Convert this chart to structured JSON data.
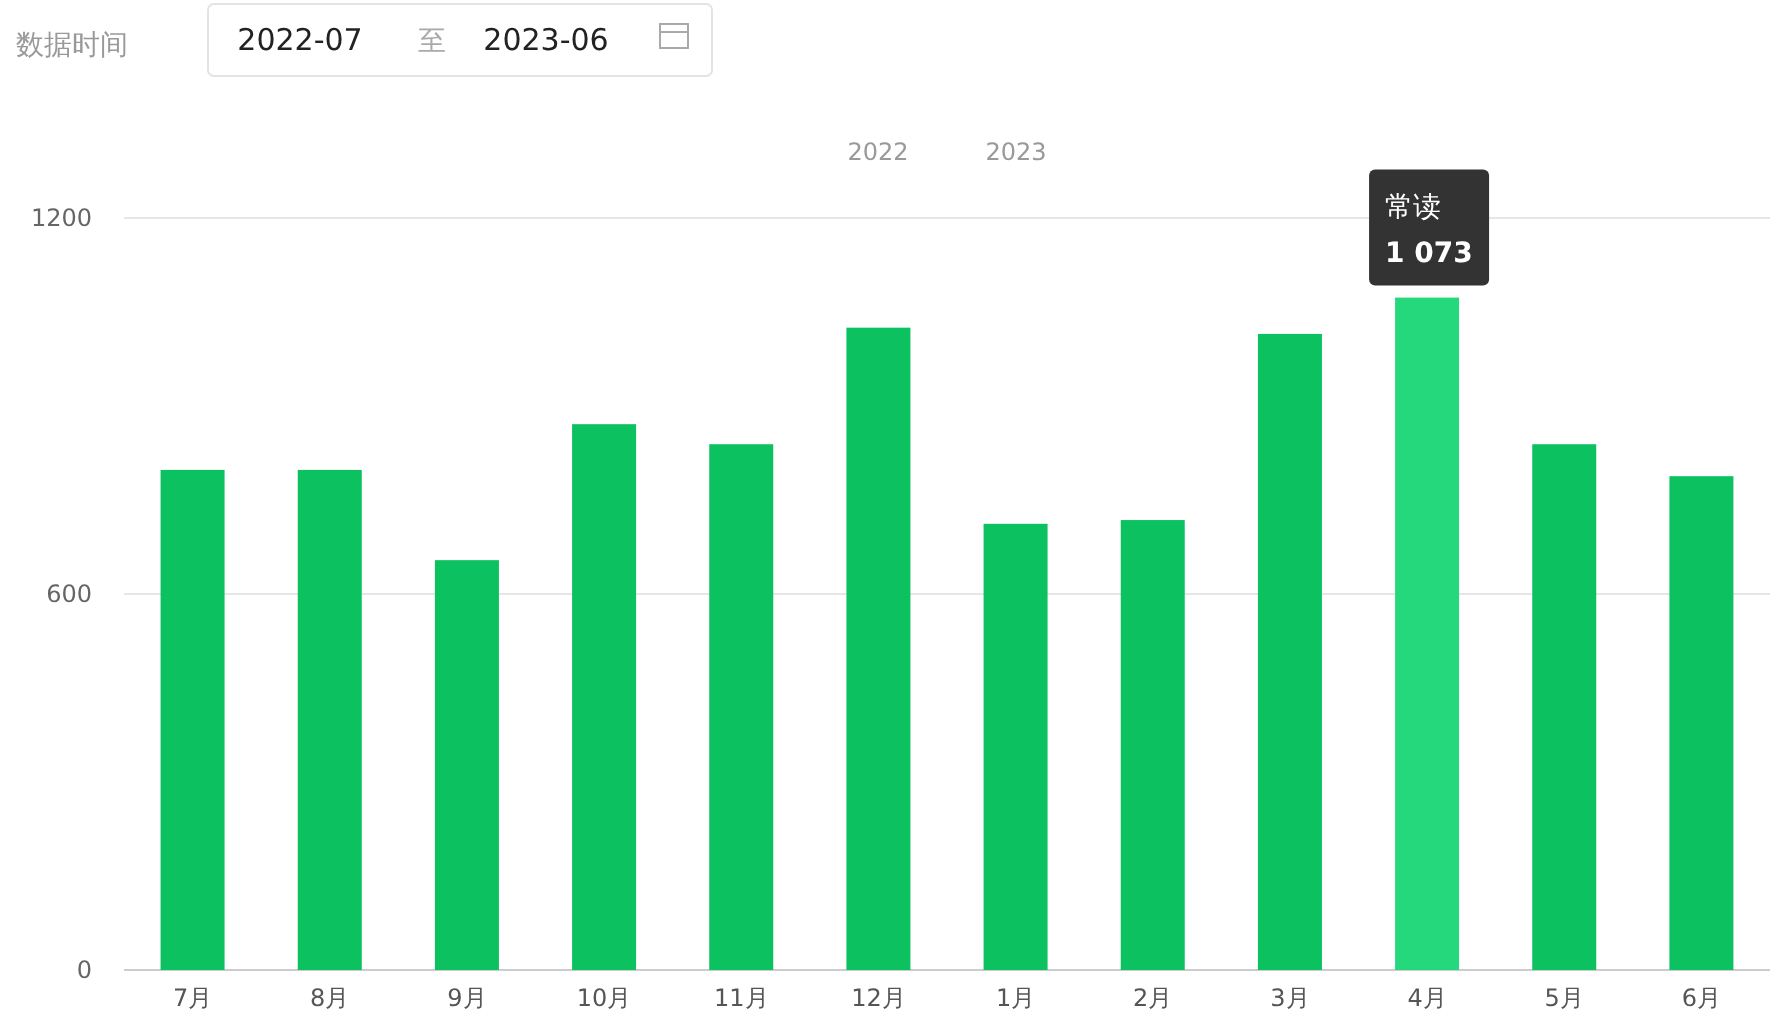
{
  "chart_data": {
    "type": "bar",
    "categories": [
      "7月",
      "8月",
      "9月",
      "10月",
      "11月",
      "12月",
      "1月",
      "2月",
      "3月",
      "4月",
      "5月",
      "6月"
    ],
    "values": [
      798,
      798,
      654,
      871,
      839,
      1025,
      712,
      718,
      1015,
      1073,
      839,
      788
    ],
    "colors": [
      "#0bc160",
      "#0bc160",
      "#0bc160",
      "#0bc160",
      "#0bc160",
      "#0bc160",
      "#0bc160",
      "#0bc160",
      "#0bc160",
      "#24d87b",
      "#0bc160",
      "#0bc160"
    ],
    "value_labels": [
      null,
      null,
      null,
      null,
      null,
      null,
      null,
      null,
      null,
      "1 073",
      null,
      null
    ],
    "annotations": [
      "数据时间",
      "2022-07",
      "至",
      "2023-06",
      "2022",
      "2023",
      {
        "text": "常读",
        "x": "4月",
        "y": 1073
      }
    ],
    "ylim": [
      0,
      1200
    ],
    "yticks": [
      0,
      600,
      1200
    ],
    "grid": "y"
  }
}
